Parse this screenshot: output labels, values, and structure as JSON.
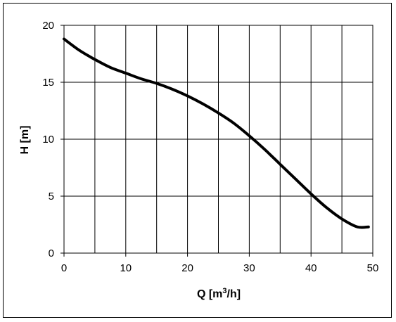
{
  "chart_data": {
    "type": "line",
    "title": "",
    "xlabel": "Q [m³/h]",
    "xlabel_main": "Q [m",
    "xlabel_sup": "3",
    "xlabel_tail": "/h]",
    "ylabel": "H [m]",
    "xlim": [
      0,
      50
    ],
    "ylim": [
      0,
      20
    ],
    "xticks": [
      0,
      10,
      20,
      30,
      40,
      50
    ],
    "yticks": [
      0,
      5,
      10,
      15,
      20
    ],
    "grid": {
      "x_step": 5,
      "y_step": 5
    },
    "legend": "none",
    "series": [
      {
        "color": "#000000",
        "x": [
          0,
          2.5,
          5,
          7.5,
          10,
          12.5,
          15,
          17.5,
          20,
          22.5,
          25,
          27.5,
          30,
          32.5,
          35,
          37.5,
          40,
          42.5,
          45,
          47.5,
          49.3
        ],
        "y": [
          18.8,
          17.8,
          17.0,
          16.3,
          15.8,
          15.3,
          14.9,
          14.4,
          13.8,
          13.1,
          12.3,
          11.4,
          10.3,
          9.1,
          7.8,
          6.5,
          5.2,
          4.0,
          3.0,
          2.3,
          2.3
        ]
      }
    ]
  },
  "colors": {
    "grid": "#000000",
    "line": "#000000",
    "background": "#ffffff"
  }
}
